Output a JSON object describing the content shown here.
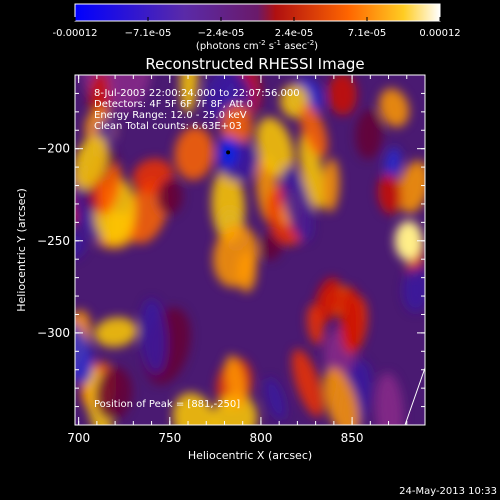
{
  "chart_data": {
    "type": "heatmap",
    "title": "Reconstructed RHESSI Image",
    "colorbar": {
      "ticks": [
        "-0.00012",
        "−7.1e-05",
        "−2.4e-05",
        "2.4e-05",
        "7.1e-05",
        "0.00012"
      ],
      "range": [
        -0.00012,
        0.00012
      ],
      "units_html_parts": [
        "(photons cm",
        "-2",
        " s",
        "-1",
        " asec",
        "-2",
        ")"
      ],
      "colormap": "blue-purple-red-orange-yellow-white"
    },
    "x_axis": {
      "label": "Heliocentric X (arcsec)",
      "range": [
        698,
        890
      ],
      "ticks": [
        700,
        750,
        800,
        850
      ]
    },
    "y_axis": {
      "label": "Heliocentric Y (arcsec)",
      "range": [
        -350,
        -160
      ],
      "ticks": [
        -200,
        -250,
        -300
      ]
    },
    "info_lines": [
      " 8-Jul-2003 22:00:24.000 to 22:07:56.000",
      "Detectors: 4F 5F 6F 7F 8F, Att 0",
      "Energy Range: 12.0 - 25.0 keV",
      "Clean    Total counts: 6.63E+03"
    ],
    "peak_label": "Position of Peak = [881,-250]",
    "peak_position": [
      881,
      -250
    ],
    "min_marker": [
      782,
      -202
    ],
    "grid": false
  },
  "footer": {
    "date": "24-May-2013 10:33"
  }
}
